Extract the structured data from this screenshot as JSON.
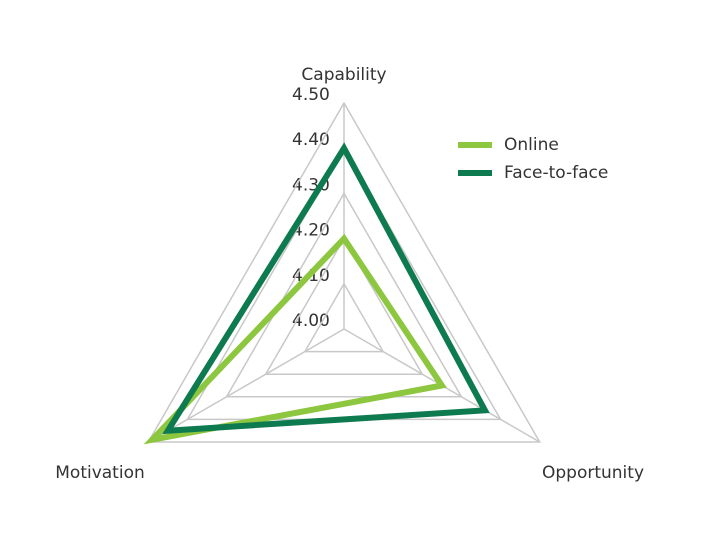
{
  "chart_data": {
    "type": "radar",
    "categories": [
      "Capability",
      "Opportunity",
      "Motivation"
    ],
    "ylim": [
      4.0,
      4.5
    ],
    "yticks": [
      {
        "value": 4.0,
        "label": "4.00"
      },
      {
        "value": 4.1,
        "label": "4.10"
      },
      {
        "value": 4.2,
        "label": "4.20"
      },
      {
        "value": 4.3,
        "label": "4.30"
      },
      {
        "value": 4.4,
        "label": "4.40"
      },
      {
        "value": 4.5,
        "label": "4.50"
      }
    ],
    "series": [
      {
        "name": "Online",
        "color": "#8dc63f",
        "values": [
          4.2,
          4.25,
          4.49
        ]
      },
      {
        "name": "Face-to-face",
        "color": "#0e7a4f",
        "values": [
          4.4,
          4.36,
          4.45
        ]
      }
    ],
    "legend": "top-right"
  }
}
